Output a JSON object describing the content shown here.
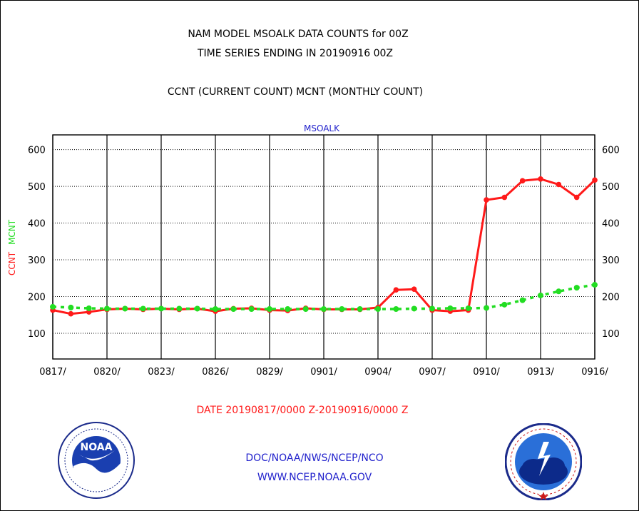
{
  "header": {
    "title_line1": "NAM MODEL MSOALK DATA COUNTS for 00Z",
    "title_line2": "TIME SERIES ENDING IN 20190916 00Z",
    "subtitle": "CCNT (CURRENT COUNT) MCNT (MONTHLY COUNT)"
  },
  "footer": {
    "date_range": "DATE 20190817/0000 Z-20190916/0000 Z",
    "org_line": "DOC/NOAA/NWS/NCEP/NCO",
    "url_line": "WWW.NCEP.NOAA.GOV",
    "noaa_logo_text": "NOAA"
  },
  "colors": {
    "ccnt": "#ff1a1a",
    "mcnt": "#22dd22",
    "plot_title": "#2222cc",
    "footer_date": "#ff1a1a",
    "footer_links": "#2222cc"
  },
  "chart_data": {
    "type": "line",
    "title": "MSOALK",
    "ylabel_parts": [
      "CCNT",
      "MCNT"
    ],
    "ylim": [
      30,
      640
    ],
    "yticks": [
      100,
      200,
      300,
      400,
      500,
      600
    ],
    "grid": true,
    "x": [
      "0817",
      "0818",
      "0819",
      "0820",
      "0821",
      "0822",
      "0823",
      "0824",
      "0825",
      "0826",
      "0827",
      "0828",
      "0829",
      "0830",
      "0831",
      "0901",
      "0902",
      "0903",
      "0904",
      "0905",
      "0906",
      "0907",
      "0908",
      "0909",
      "0910",
      "0911",
      "0912",
      "0913",
      "0914",
      "0915",
      "0916"
    ],
    "xtick_labels": [
      "0817/",
      "0820/",
      "0823/",
      "0826/",
      "0829/",
      "0901/",
      "0904/",
      "0907/",
      "0910/",
      "0913/",
      "0916/"
    ],
    "series": [
      {
        "name": "CCNT",
        "values": [
          163,
          153,
          158,
          165,
          167,
          165,
          167,
          165,
          167,
          160,
          167,
          168,
          163,
          162,
          168,
          165,
          165,
          165,
          170,
          218,
          220,
          163,
          160,
          163,
          463,
          470,
          515,
          520,
          505,
          470,
          517
        ]
      },
      {
        "name": "MCNT",
        "values": [
          172,
          170,
          168,
          167,
          167,
          167,
          167,
          167,
          167,
          166,
          166,
          166,
          166,
          166,
          166,
          166,
          166,
          166,
          166,
          166,
          167,
          167,
          168,
          168,
          169,
          178,
          190,
          203,
          214,
          224,
          232
        ]
      }
    ]
  }
}
